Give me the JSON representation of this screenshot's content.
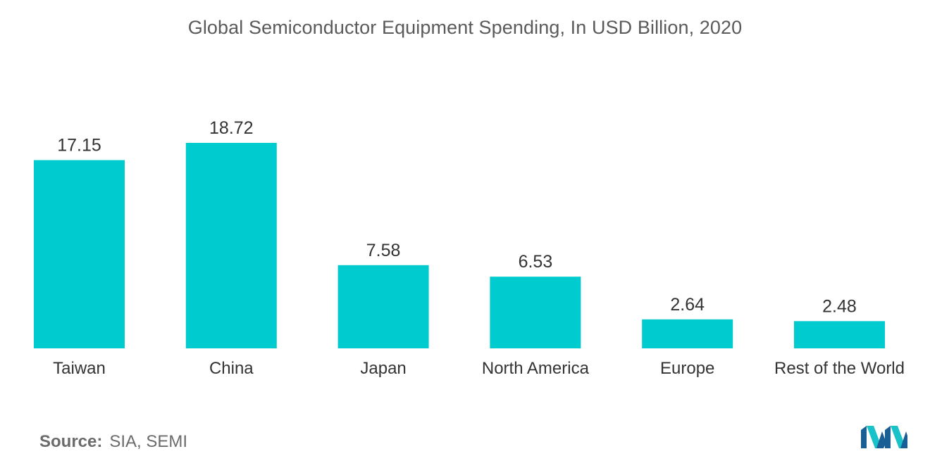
{
  "chart_data": {
    "type": "bar",
    "title": "Global Semiconductor Equipment Spending, In USD Billion, 2020",
    "categories": [
      "Taiwan",
      "China",
      "Japan",
      "North America",
      "Europe",
      "Rest of the World"
    ],
    "values": [
      17.15,
      18.72,
      7.58,
      6.53,
      2.64,
      2.48
    ],
    "value_labels": [
      "17.15",
      "18.72",
      "7.58",
      "6.53",
      "2.64",
      "2.48"
    ],
    "xlabel": "",
    "ylabel": "",
    "ylim": [
      0,
      18.72
    ],
    "grid": false,
    "legend": "none",
    "bar_color": "#00cccf"
  },
  "source": {
    "label": "Source:",
    "text": "SIA, SEMI"
  },
  "logo": {
    "icon": "mordor-intelligence-logo-icon",
    "colors": [
      "#1a5e96",
      "#19c1c8"
    ]
  }
}
